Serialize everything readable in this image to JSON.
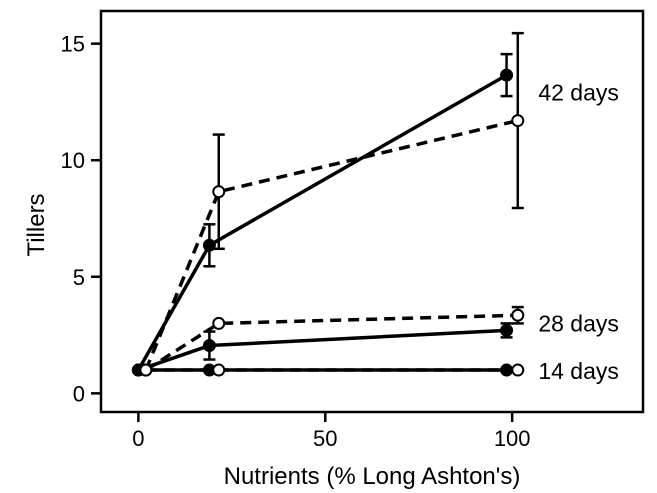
{
  "chart_data": {
    "type": "line",
    "xlabel": "Nutrients (% Long Ashton's)",
    "ylabel": "Tillers",
    "xlim": [
      -10,
      135
    ],
    "ylim": [
      -0.8,
      16.4
    ],
    "x_ticks": [
      {
        "value": 0,
        "label": "0"
      },
      {
        "value": 50,
        "label": "50"
      },
      {
        "value": 100,
        "label": "100"
      }
    ],
    "y_ticks": [
      {
        "value": 0,
        "label": "0"
      },
      {
        "value": 5,
        "label": "5"
      },
      {
        "value": 10,
        "label": "10"
      },
      {
        "value": 15,
        "label": "15"
      }
    ],
    "grid": false,
    "legend": "none",
    "series": [
      {
        "style": "solid",
        "marker": "filled",
        "x": [
          0,
          19,
          98.5
        ],
        "y": [
          1.0,
          1.0,
          1.0
        ],
        "err": [
          0,
          0,
          0
        ]
      },
      {
        "style": "dashed",
        "marker": "open",
        "x": [
          2,
          21.5,
          101.5
        ],
        "y": [
          1.0,
          1.0,
          1.0
        ],
        "err": [
          0,
          0,
          0
        ]
      },
      {
        "style": "solid",
        "marker": "filled",
        "x": [
          0,
          19,
          98.5
        ],
        "y": [
          1.0,
          2.05,
          2.7
        ],
        "err": [
          0,
          0.6,
          0.3
        ]
      },
      {
        "style": "dashed",
        "marker": "open",
        "x": [
          2,
          21.5,
          101.5
        ],
        "y": [
          1.0,
          3.0,
          3.35
        ],
        "err": [
          0,
          0,
          0.35
        ]
      },
      {
        "style": "solid",
        "marker": "filled",
        "x": [
          0,
          19,
          98.5
        ],
        "y": [
          1.0,
          6.35,
          13.65
        ],
        "err": [
          0,
          0.9,
          0.9
        ]
      },
      {
        "style": "dashed",
        "marker": "open",
        "x": [
          2,
          21.5,
          101.5
        ],
        "y": [
          1.0,
          8.65,
          11.7
        ],
        "err": [
          0,
          2.45,
          3.75
        ]
      }
    ],
    "annotations": [
      {
        "text": "42 days",
        "x": 107,
        "y": 12.9
      },
      {
        "text": "28 days",
        "x": 107,
        "y": 3.0
      },
      {
        "text": "14 days",
        "x": 107,
        "y": 0.95
      }
    ],
    "colors": {
      "line": "#000000",
      "marker_fill_open": "#ffffff",
      "background": "#ffffff"
    }
  }
}
